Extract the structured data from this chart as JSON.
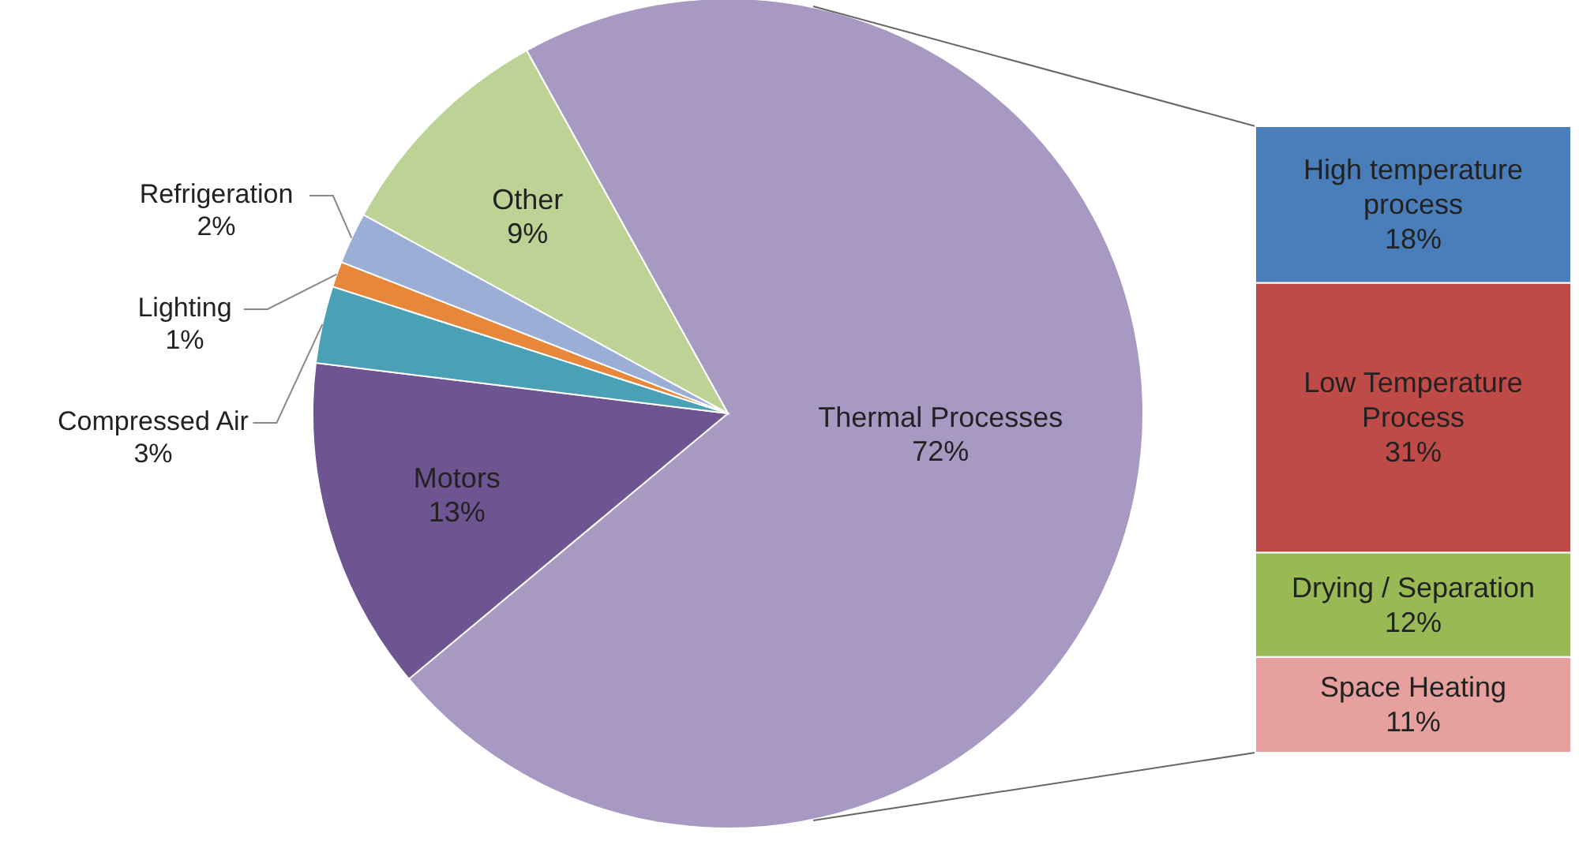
{
  "chart_data": [
    {
      "type": "pie",
      "categories": [
        "Thermal Processes",
        "Motors",
        "Compressed Air",
        "Lighting",
        "Refrigeration",
        "Other"
      ],
      "values": [
        72,
        13,
        3,
        1,
        2,
        9
      ],
      "colors": [
        "#a899c2",
        "#6e5490",
        "#4aa0b5",
        "#e8873a",
        "#9aaed6",
        "#bdd395"
      ],
      "value_labels": [
        "72%",
        "13%",
        "3%",
        "1%",
        "2%",
        "9%"
      ]
    },
    {
      "type": "bar",
      "stacked": true,
      "categories": [
        null
      ],
      "series": [
        {
          "name": "Space Heating",
          "color": "#e6a09e",
          "values": [
            11
          ],
          "value_labels": [
            "11%"
          ]
        },
        {
          "name": "Drying / Separation",
          "color": "#98b954",
          "values": [
            12
          ],
          "value_labels": [
            "12%"
          ]
        },
        {
          "name": "Low Temperature Process",
          "color": "#be4b48",
          "values": [
            31
          ],
          "value_labels": [
            "31%"
          ]
        },
        {
          "name": "High temperature process",
          "color": "#4a7ebb",
          "values": [
            18
          ],
          "value_labels": [
            "18%"
          ]
        }
      ]
    }
  ]
}
